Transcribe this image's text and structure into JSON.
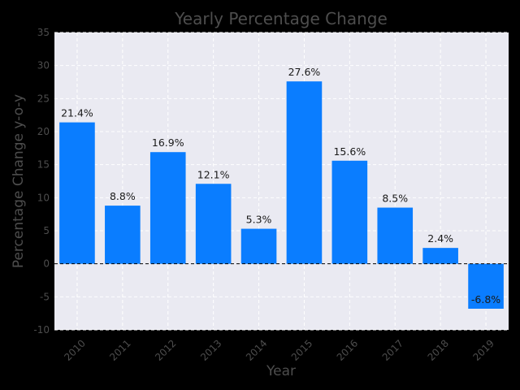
{
  "chart_data": {
    "type": "bar",
    "title": "Yearly Percentage Change",
    "xlabel": "Year",
    "ylabel": "Percentage Change y-o-y",
    "categories": [
      "2010",
      "2011",
      "2012",
      "2013",
      "2014",
      "2015",
      "2016",
      "2017",
      "2018",
      "2019"
    ],
    "values": [
      21.4,
      8.8,
      16.9,
      12.1,
      5.3,
      27.6,
      15.6,
      8.5,
      2.4,
      -6.8
    ],
    "data_labels": [
      "21.4%",
      "8.8%",
      "16.9%",
      "12.1%",
      "5.3%",
      "27.6%",
      "15.6%",
      "8.5%",
      "2.4%",
      "-6.8%"
    ],
    "ylim": [
      -10,
      35
    ],
    "yticks": [
      -10,
      -5,
      0,
      5,
      10,
      15,
      20,
      25,
      30,
      35
    ],
    "grid": true,
    "zero_line": "dashed",
    "colors": {
      "bar": "#0a7dff",
      "plot_background": "#eaeaf2",
      "page_background": "#000000",
      "grid": "#ffffff",
      "zero_line": "#000000"
    }
  }
}
